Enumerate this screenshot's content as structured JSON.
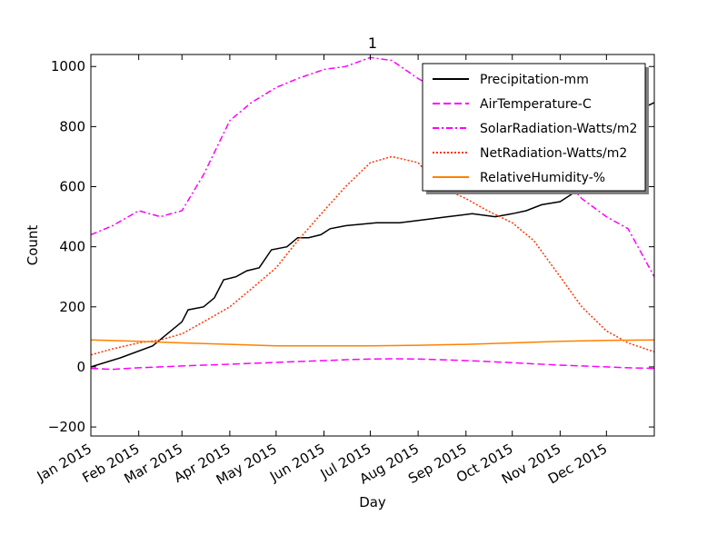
{
  "chart_data": {
    "type": "line",
    "title": "1",
    "xlabel": "Day",
    "ylabel": "Count",
    "xlim": [
      "2015-01-01",
      "2016-01-01"
    ],
    "ylim": [
      -230,
      1040
    ],
    "yticks": [
      -200,
      0,
      200,
      400,
      600,
      800,
      1000
    ],
    "xticks": [
      {
        "date": "2015-01-01",
        "label": "Jan 2015"
      },
      {
        "date": "2015-02-01",
        "label": "Feb 2015"
      },
      {
        "date": "2015-03-01",
        "label": "Mar 2015"
      },
      {
        "date": "2015-04-01",
        "label": "Apr 2015"
      },
      {
        "date": "2015-05-01",
        "label": "May 2015"
      },
      {
        "date": "2015-06-01",
        "label": "Jun 2015"
      },
      {
        "date": "2015-07-01",
        "label": "Jul 2015"
      },
      {
        "date": "2015-08-01",
        "label": "Aug 2015"
      },
      {
        "date": "2015-09-01",
        "label": "Sep 2015"
      },
      {
        "date": "2015-10-01",
        "label": "Oct 2015"
      },
      {
        "date": "2015-11-01",
        "label": "Nov 2015"
      },
      {
        "date": "2015-12-01",
        "label": "Dec 2015"
      }
    ],
    "grid": false,
    "legend_position": "upper-right",
    "series": [
      {
        "name": "Precipitation-mm",
        "color": "#000000",
        "style": "solid",
        "x": [
          "2015-01-01",
          "2015-01-20",
          "2015-02-10",
          "2015-03-01",
          "2015-03-05",
          "2015-03-15",
          "2015-03-22",
          "2015-03-28",
          "2015-04-05",
          "2015-04-12",
          "2015-04-20",
          "2015-04-28",
          "2015-05-08",
          "2015-05-15",
          "2015-05-22",
          "2015-05-30",
          "2015-06-05",
          "2015-06-15",
          "2015-06-25",
          "2015-07-05",
          "2015-07-20",
          "2015-08-05",
          "2015-08-20",
          "2015-09-05",
          "2015-09-20",
          "2015-10-01",
          "2015-10-10",
          "2015-10-20",
          "2015-11-01",
          "2015-11-10",
          "2015-11-20",
          "2015-12-01",
          "2015-12-10",
          "2015-12-20",
          "2015-12-28",
          "2016-01-01"
        ],
        "y": [
          0,
          30,
          70,
          150,
          190,
          200,
          230,
          290,
          300,
          320,
          330,
          390,
          400,
          430,
          430,
          440,
          460,
          470,
          475,
          480,
          480,
          490,
          500,
          510,
          500,
          510,
          520,
          540,
          550,
          580,
          640,
          680,
          720,
          760,
          870,
          880
        ]
      },
      {
        "name": "AirTemperature-C",
        "color": "#ff00ff",
        "style": "dashed",
        "x": [
          "2015-01-01",
          "2015-01-15",
          "2015-02-01",
          "2015-02-15",
          "2015-03-01",
          "2015-03-15",
          "2015-04-01",
          "2015-04-15",
          "2015-05-01",
          "2015-05-15",
          "2015-06-01",
          "2015-06-15",
          "2015-07-01",
          "2015-07-15",
          "2015-08-01",
          "2015-08-15",
          "2015-09-01",
          "2015-09-15",
          "2015-10-01",
          "2015-10-15",
          "2015-11-01",
          "2015-11-15",
          "2015-12-01",
          "2015-12-15",
          "2016-01-01"
        ],
        "y": [
          -5,
          -8,
          -3,
          0,
          3,
          6,
          9,
          12,
          15,
          18,
          21,
          24,
          26,
          27,
          26,
          24,
          21,
          18,
          14,
          10,
          6,
          3,
          0,
          -3,
          -5
        ]
      },
      {
        "name": "SolarRadiation-Watts/m2",
        "color": "#ff00ff",
        "style": "dashdot",
        "x": [
          "2015-01-01",
          "2015-01-15",
          "2015-02-01",
          "2015-02-15",
          "2015-03-01",
          "2015-03-15",
          "2015-04-01",
          "2015-04-15",
          "2015-05-01",
          "2015-05-15",
          "2015-06-01",
          "2015-06-15",
          "2015-07-01",
          "2015-07-15",
          "2015-08-01",
          "2015-08-15",
          "2015-09-01",
          "2015-09-15",
          "2015-10-01",
          "2015-10-15",
          "2015-11-01",
          "2015-11-15",
          "2015-12-01",
          "2015-12-15",
          "2016-01-01"
        ],
        "y": [
          440,
          470,
          520,
          500,
          520,
          640,
          820,
          880,
          930,
          960,
          990,
          1000,
          1030,
          1020,
          960,
          920,
          870,
          820,
          740,
          700,
          640,
          560,
          500,
          460,
          300
        ]
      },
      {
        "name": "NetRadiation-Watts/m2",
        "color": "#ff3300",
        "style": "dotted",
        "x": [
          "2015-01-01",
          "2015-01-15",
          "2015-02-01",
          "2015-02-15",
          "2015-03-01",
          "2015-03-15",
          "2015-04-01",
          "2015-04-15",
          "2015-05-01",
          "2015-05-15",
          "2015-06-01",
          "2015-06-15",
          "2015-07-01",
          "2015-07-15",
          "2015-08-01",
          "2015-08-15",
          "2015-09-01",
          "2015-09-15",
          "2015-10-01",
          "2015-10-15",
          "2015-11-01",
          "2015-11-15",
          "2015-12-01",
          "2015-12-15",
          "2016-01-01"
        ],
        "y": [
          40,
          60,
          80,
          90,
          110,
          150,
          200,
          260,
          330,
          420,
          520,
          600,
          680,
          700,
          680,
          600,
          560,
          520,
          480,
          420,
          300,
          200,
          120,
          80,
          50
        ]
      },
      {
        "name": "RelativeHumidity-%",
        "color": "#ff8000",
        "style": "solid",
        "x": [
          "2015-01-01",
          "2015-02-01",
          "2015-03-01",
          "2015-04-01",
          "2015-05-01",
          "2015-06-01",
          "2015-07-01",
          "2015-08-01",
          "2015-09-01",
          "2015-10-01",
          "2015-11-01",
          "2015-12-01",
          "2016-01-01"
        ],
        "y": [
          90,
          85,
          80,
          75,
          70,
          70,
          70,
          72,
          75,
          80,
          85,
          88,
          90
        ]
      }
    ]
  }
}
